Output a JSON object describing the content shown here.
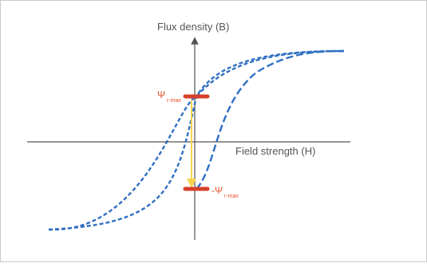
{
  "diagram": {
    "y_axis_label": "Flux density (B)",
    "x_axis_label": "Field strength (H)",
    "upper_marker_label": "Ψ",
    "upper_marker_subscript": "r-max",
    "lower_marker_label": "-Ψ",
    "lower_marker_subscript": "r-max",
    "colors": {
      "curve": "#2f6fc2",
      "marker": "#d6402a",
      "arrow": "#f5d44b",
      "axis": "#555555",
      "label_text": "#555555",
      "marker_text": "#e8502a"
    },
    "curves": [
      "hysteresis-ascending-branch",
      "hysteresis-descending-branch",
      "initial-magnetization-curve"
    ]
  }
}
